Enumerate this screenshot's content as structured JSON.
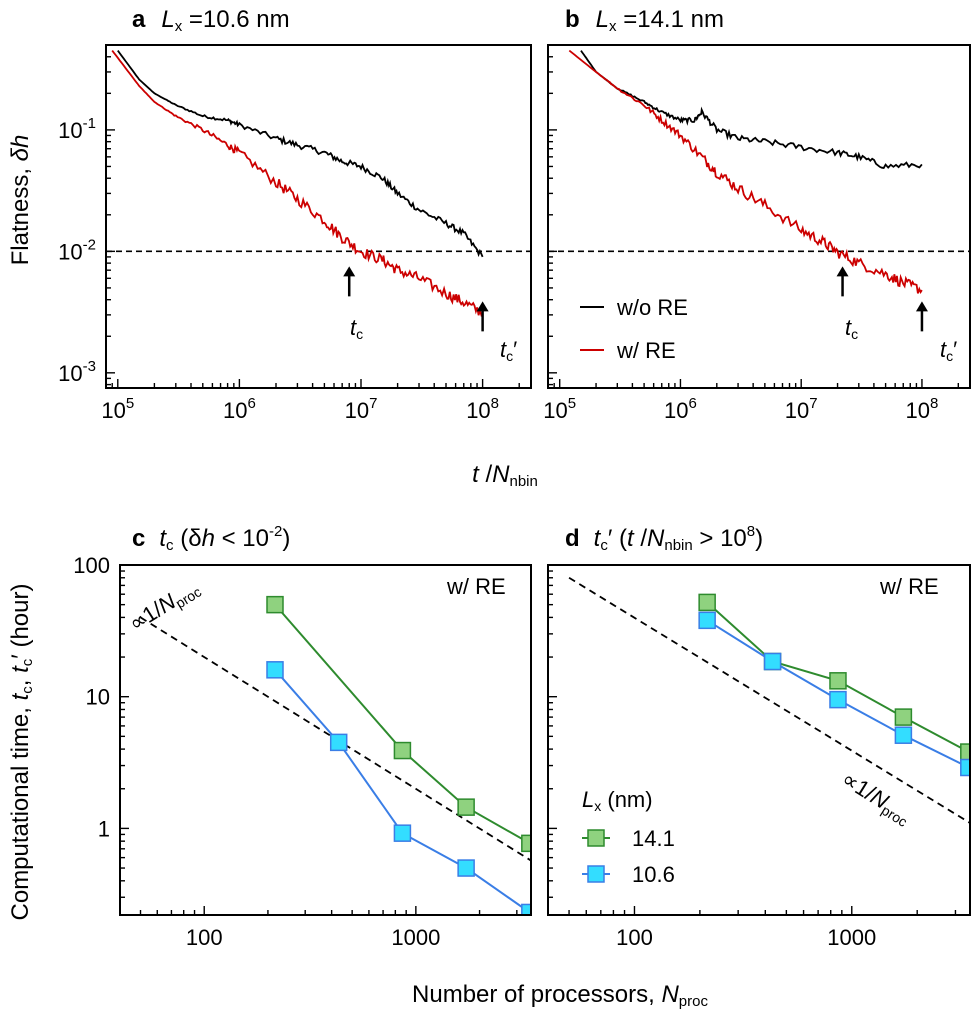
{
  "figure": {
    "x_label_top": {
      "var": "t",
      "sep": " /",
      "sub_var": "N",
      "sub": "nbin"
    },
    "x_label_bottom": {
      "text": "Number of processors, ",
      "var": "N",
      "sub": "proc"
    },
    "y_label_top": {
      "text": "Flatness, ",
      "var": "δh"
    },
    "y_label_bottom": {
      "text": "Computational time, ",
      "var1": "t",
      "sub1": "c",
      "sep": ", ",
      "var2": "t",
      "sub2": "c",
      "prime": "′",
      "unit": "  (hour)"
    }
  },
  "panels": {
    "a": {
      "letter": "a",
      "var": "L",
      "sub": "x",
      "value": " =10.6 nm"
    },
    "b": {
      "letter": "b",
      "var": "L",
      "sub": "x",
      "value": " =14.1 nm"
    },
    "c": {
      "letter": "c",
      "var": "t",
      "sub": "c",
      "cond_open": "  (δ",
      "cond_var": "h",
      "cond_rest": " < 10",
      "cond_sup": "-2",
      "cond_close": ")"
    },
    "d": {
      "letter": "d",
      "var": "t",
      "sub": "c",
      "prime": "′",
      "cond_open": "  (",
      "cond_var": "t",
      "cond_sep": " /",
      "cond_var2": "N",
      "cond_sub": "nbin",
      "cond_rest": " > 10",
      "cond_sup": "8",
      "cond_close": ")"
    }
  },
  "annotations": {
    "tc_label": {
      "var": "t",
      "sub": "c"
    },
    "tcp_label": {
      "var": "t",
      "sub": "c",
      "prime": "′"
    },
    "with_re": "w/ RE",
    "scaling": {
      "prefix": "∝1/",
      "var": "N",
      "sub": "proc"
    }
  },
  "legend_top": {
    "items": [
      {
        "label": "w/o RE",
        "color": "#000000"
      },
      {
        "label": "w/ RE",
        "color": "#cc0000"
      }
    ]
  },
  "legend_bottom": {
    "title_var": "L",
    "title_sub": "x",
    "title_unit": "  (nm)",
    "items": [
      {
        "label": "14.1",
        "line": "#2e8b2e",
        "fill": "#8fd27f"
      },
      {
        "label": "10.6",
        "line": "#3a7ee6",
        "fill": "#33ddff"
      }
    ]
  },
  "axis_ticks": {
    "top_x": [
      {
        "value": 100000,
        "base": "10",
        "exp": "5"
      },
      {
        "value": 1000000,
        "base": "10",
        "exp": "6"
      },
      {
        "value": 10000000,
        "base": "10",
        "exp": "7"
      },
      {
        "value": 100000000,
        "base": "10",
        "exp": "8"
      }
    ],
    "top_y": [
      {
        "value": 0.1,
        "base": "10",
        "exp": "-1"
      },
      {
        "value": 0.01,
        "base": "10",
        "exp": "-2"
      },
      {
        "value": 0.001,
        "base": "10",
        "exp": "-3"
      }
    ],
    "bottom_x": [
      {
        "value": 100,
        "label": "100"
      },
      {
        "value": 1000,
        "label": "1000"
      }
    ],
    "bottom_y": [
      {
        "value": 100,
        "label": "100"
      },
      {
        "value": 10,
        "label": "10"
      },
      {
        "value": 1,
        "label": "1"
      }
    ]
  },
  "chart_data": [
    {
      "panel": "a",
      "type": "line",
      "x_scale": "log",
      "y_scale": "log",
      "xlim": [
        80000,
        250000000
      ],
      "ylim": [
        0.00075,
        0.5
      ],
      "threshold": 0.01,
      "series": [
        {
          "name": "w/o RE",
          "color": "#000000",
          "x": [
            100000,
            150000,
            200000,
            300000,
            500000,
            800000,
            1000000,
            2000000,
            3000000,
            5000000,
            7000000,
            10000000,
            15000000,
            20000000,
            30000000,
            50000000,
            70000000,
            100000000
          ],
          "y": [
            0.45,
            0.26,
            0.2,
            0.16,
            0.13,
            0.12,
            0.11,
            0.085,
            0.075,
            0.065,
            0.055,
            0.05,
            0.04,
            0.03,
            0.022,
            0.017,
            0.014,
            0.009
          ]
        },
        {
          "name": "w/ RE",
          "color": "#cc0000",
          "x": [
            90000,
            150000,
            200000,
            300000,
            500000,
            800000,
            1000000,
            2000000,
            3000000,
            5000000,
            7000000,
            10000000,
            15000000,
            20000000,
            30000000,
            50000000,
            70000000,
            100000000
          ],
          "y": [
            0.45,
            0.23,
            0.17,
            0.13,
            0.1,
            0.075,
            0.065,
            0.037,
            0.027,
            0.018,
            0.013,
            0.01,
            0.0085,
            0.007,
            0.006,
            0.0045,
            0.0038,
            0.0031
          ]
        }
      ],
      "arrows": [
        {
          "label": "tc",
          "x": 8000000
        },
        {
          "label": "tc'",
          "x": 100000000
        }
      ]
    },
    {
      "panel": "b",
      "type": "line",
      "x_scale": "log",
      "y_scale": "log",
      "xlim": [
        80000,
        250000000
      ],
      "ylim": [
        0.00075,
        0.5
      ],
      "threshold": 0.01,
      "series": [
        {
          "name": "w/o RE",
          "color": "#000000",
          "x": [
            150000,
            200000,
            300000,
            500000,
            700000,
            1000000,
            1300000,
            1500000,
            2000000,
            3000000,
            5000000,
            10000000,
            20000000,
            30000000,
            50000000,
            100000000
          ],
          "y": [
            0.45,
            0.3,
            0.22,
            0.17,
            0.14,
            0.12,
            0.12,
            0.14,
            0.1,
            0.085,
            0.08,
            0.072,
            0.065,
            0.06,
            0.05,
            0.052
          ]
        },
        {
          "name": "w/ RE",
          "color": "#cc0000",
          "x": [
            120000,
            200000,
            300000,
            500000,
            700000,
            1000000,
            1500000,
            2000000,
            3000000,
            5000000,
            10000000,
            15000000,
            20000000,
            30000000,
            50000000,
            70000000,
            100000000
          ],
          "y": [
            0.45,
            0.3,
            0.22,
            0.16,
            0.12,
            0.09,
            0.06,
            0.045,
            0.033,
            0.024,
            0.015,
            0.012,
            0.0098,
            0.008,
            0.0065,
            0.0055,
            0.0048
          ]
        }
      ],
      "arrows": [
        {
          "label": "tc",
          "x": 22000000
        },
        {
          "label": "tc'",
          "x": 100000000
        }
      ]
    },
    {
      "panel": "c",
      "type": "line",
      "x_scale": "log",
      "y_scale": "log",
      "xlim": [
        40,
        3500
      ],
      "ylim": [
        0.22,
        100
      ],
      "xlabel": "Number of processors, Nproc",
      "ylabel": "Computational time (hour)",
      "series": [
        {
          "name": "14.1",
          "x": [
            216,
            864,
            1728,
            3456
          ],
          "y": [
            50,
            3.9,
            1.45,
            0.77
          ]
        },
        {
          "name": "10.6",
          "x": [
            216,
            432,
            864,
            1728,
            3456
          ],
          "y": [
            16,
            4.5,
            0.92,
            0.5,
            0.23
          ]
        }
      ],
      "reference": {
        "label": "∝1/Nproc",
        "x": [
          50,
          3500
        ],
        "y": [
          40,
          0.57
        ]
      }
    },
    {
      "panel": "d",
      "type": "line",
      "x_scale": "log",
      "y_scale": "log",
      "xlim": [
        40,
        3500
      ],
      "ylim": [
        0.22,
        100
      ],
      "series": [
        {
          "name": "14.1",
          "x": [
            216,
            432,
            864,
            1728,
            3456
          ],
          "y": [
            52,
            18.5,
            13.2,
            7.0,
            3.8
          ]
        },
        {
          "name": "10.6",
          "x": [
            216,
            432,
            864,
            1728,
            3456
          ],
          "y": [
            38,
            18.5,
            9.5,
            5.1,
            2.9
          ]
        }
      ],
      "reference": {
        "label": "∝1/Nproc",
        "x": [
          50,
          3500
        ],
        "y": [
          80,
          1.1
        ]
      }
    }
  ]
}
